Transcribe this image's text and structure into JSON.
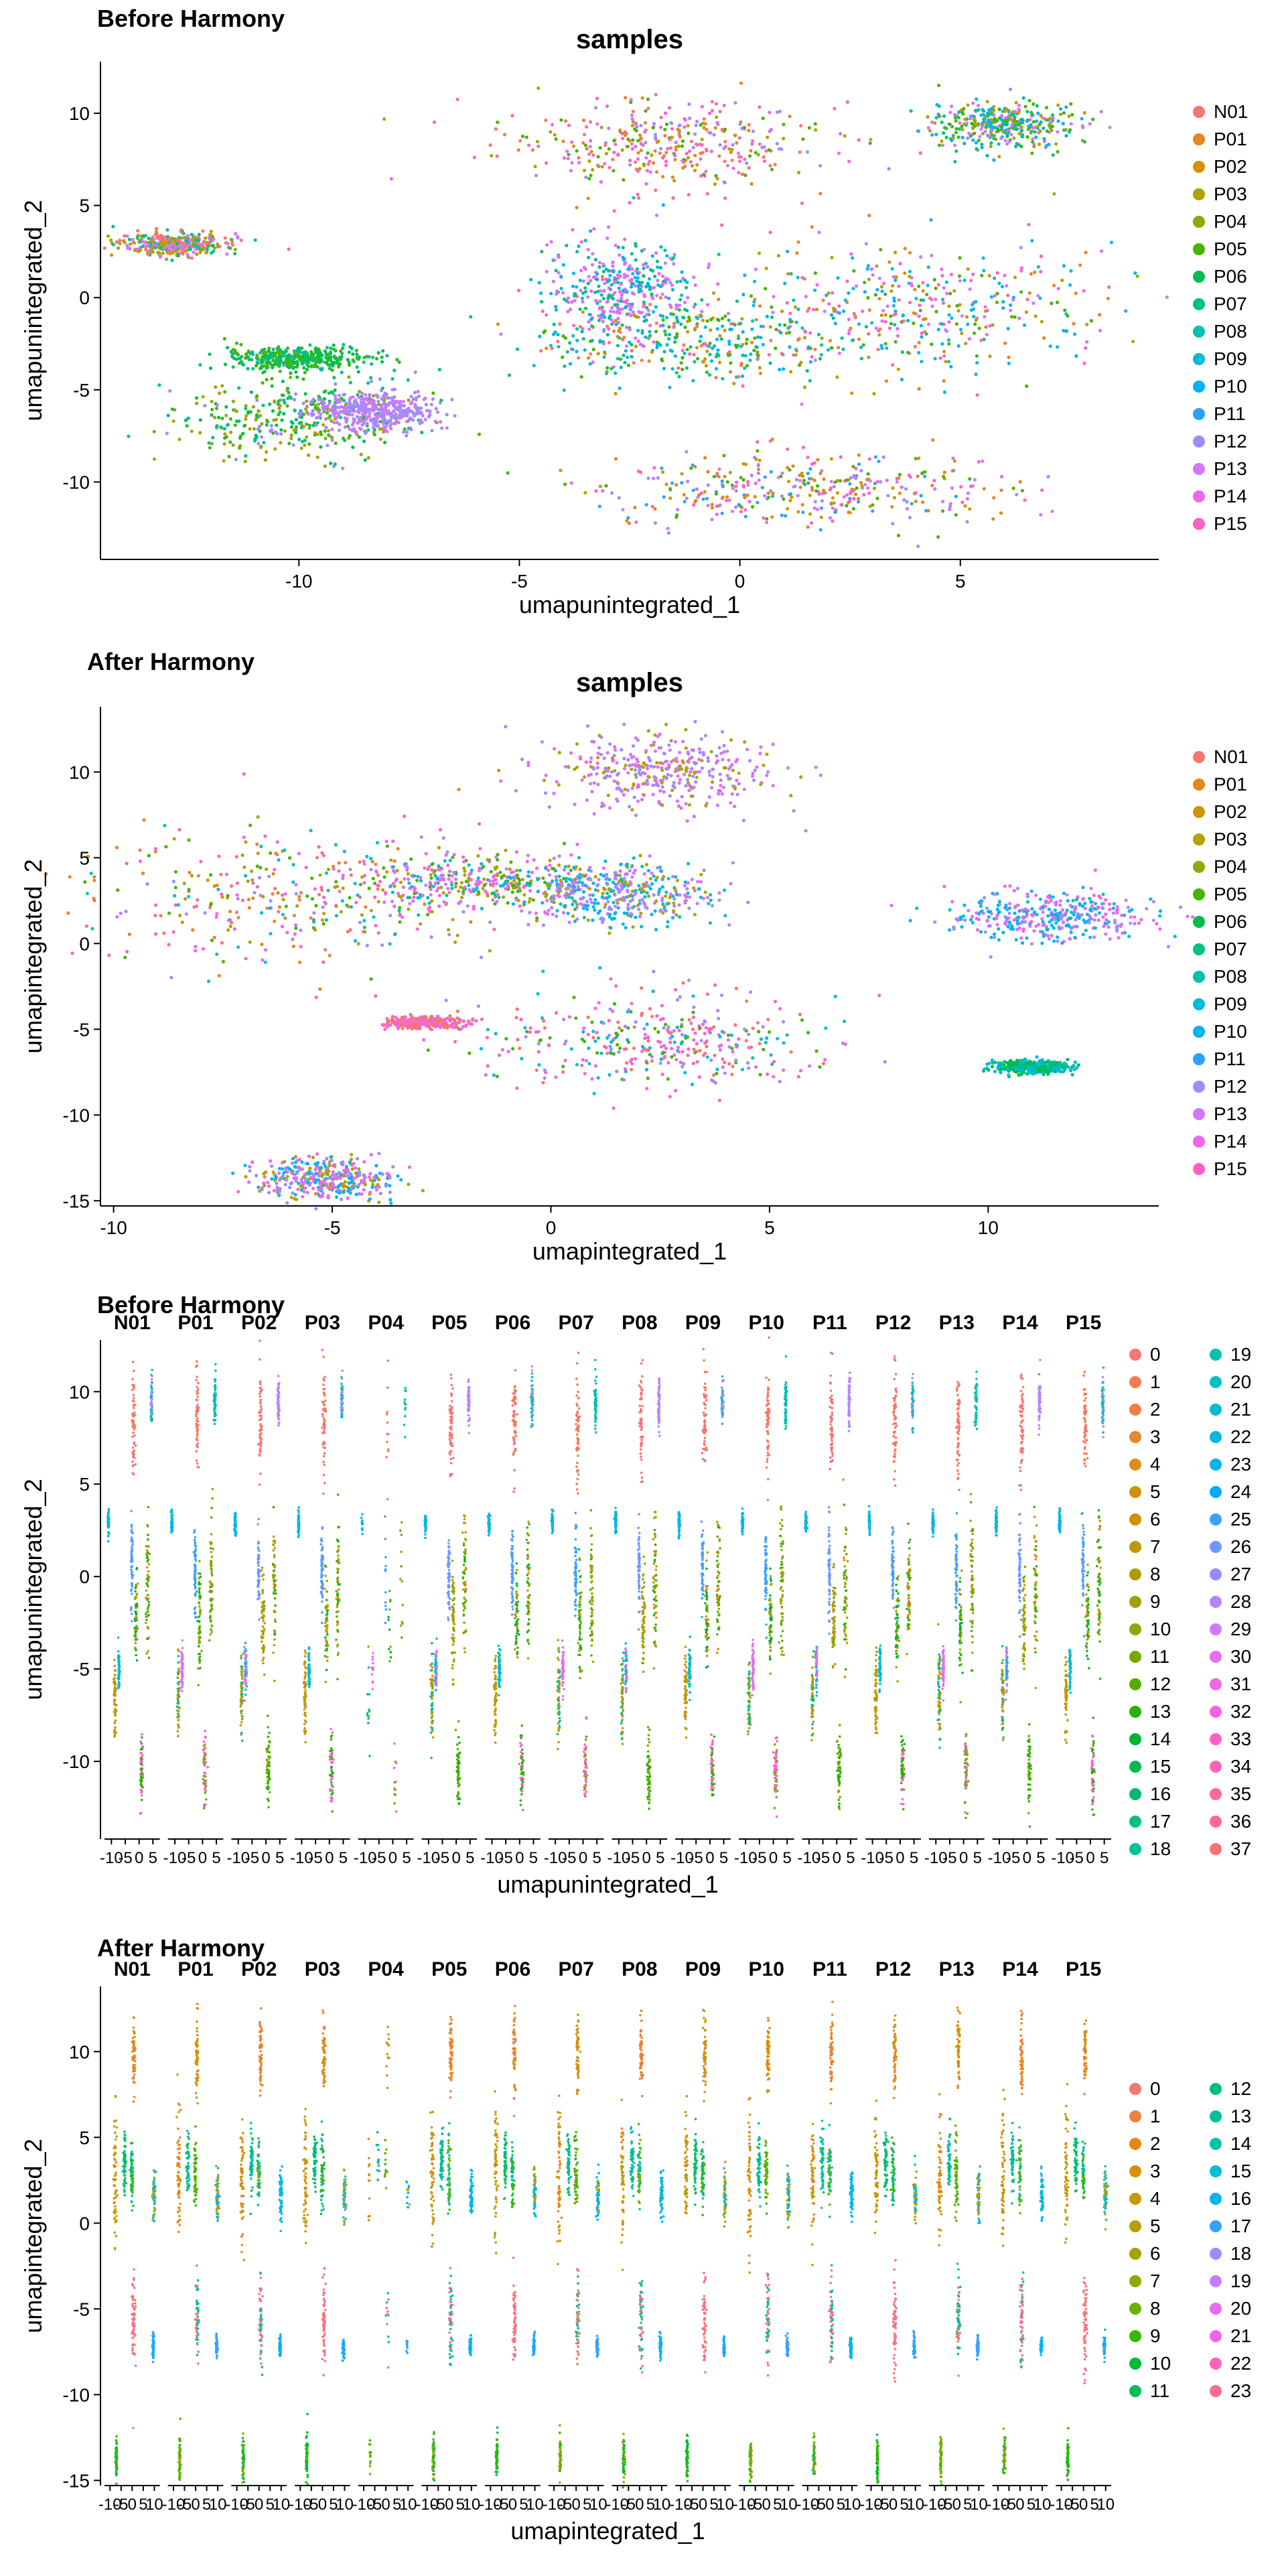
{
  "chart_data": [
    {
      "type": "scatter",
      "panel_title": "Before Harmony",
      "title": "samples",
      "xlabel": "umapunintegrated_1",
      "ylabel": "umapunintegrated_2",
      "xlim": [
        -14.5,
        9.5
      ],
      "ylim": [
        -14.2,
        12.8
      ],
      "xticks": [
        -10,
        -5,
        0,
        5
      ],
      "yticks": [
        -10,
        -5,
        0,
        5,
        10
      ],
      "grid": false,
      "legend_position": "right",
      "legend": [
        "N01",
        "P01",
        "P02",
        "P03",
        "P04",
        "P05",
        "P06",
        "P07",
        "P08",
        "P09",
        "P10",
        "P11",
        "P12",
        "P13",
        "P14",
        "P15"
      ],
      "legend_colors": [
        "#F8766D",
        "#E7851E",
        "#D09400",
        "#B2A100",
        "#89AC00",
        "#45B500",
        "#00BC51",
        "#00C087",
        "#00C0B2",
        "#00BCD6",
        "#00B3F2",
        "#29A3FF",
        "#9C8DFF",
        "#D277FF",
        "#F166E8",
        "#FF61C7"
      ],
      "clusters": [
        {
          "x": -1.8,
          "y": 8.3,
          "sx": 1.8,
          "sy": 1.2,
          "colors": [
            14,
            15,
            0,
            3,
            5,
            12,
            1
          ]
        },
        {
          "x": 5.9,
          "y": 9.4,
          "sx": 0.9,
          "sy": 0.6,
          "colors": [
            10,
            5,
            7,
            13,
            3
          ]
        },
        {
          "x": 4.2,
          "y": -0.5,
          "sx": 2.2,
          "sy": 1.8,
          "colors": [
            10,
            15,
            14,
            9,
            13,
            3,
            5,
            1
          ]
        },
        {
          "x": -0.8,
          "y": -2.4,
          "sx": 2.0,
          "sy": 1.3,
          "colors": [
            9,
            10,
            2,
            5,
            7,
            0
          ]
        },
        {
          "x": -2.7,
          "y": 0.4,
          "sx": 0.8,
          "sy": 1.4,
          "colors": [
            13,
            14,
            10,
            7
          ]
        },
        {
          "x": 1.5,
          "y": -10.4,
          "sx": 2.3,
          "sy": 1.0,
          "colors": [
            13,
            12,
            1,
            11,
            5,
            15,
            2
          ]
        },
        {
          "x": -12.8,
          "y": 2.9,
          "sx": 0.6,
          "sy": 0.3,
          "colors": [
            7,
            13,
            3,
            0
          ]
        },
        {
          "x": -10.0,
          "y": -6.5,
          "sx": 1.4,
          "sy": 1.1,
          "colors": [
            6,
            3,
            4,
            12,
            7,
            5
          ]
        },
        {
          "x": -8.3,
          "y": -6.2,
          "sx": 0.7,
          "sy": 0.5,
          "colors": [
            12,
            13
          ]
        },
        {
          "x": -10.1,
          "y": -3.3,
          "sx": 0.8,
          "sy": 0.3,
          "colors": [
            6,
            5,
            7
          ]
        }
      ]
    },
    {
      "type": "scatter",
      "panel_title": "After Harmony",
      "title": "samples",
      "xlabel": "umapintegrated_1",
      "ylabel": "umapintegrated_2",
      "xlim": [
        -10.3,
        13.9
      ],
      "ylim": [
        -15.3,
        13.8
      ],
      "xticks": [
        -10,
        -5,
        0,
        5,
        10
      ],
      "yticks": [
        -15,
        -10,
        -5,
        0,
        5,
        10
      ],
      "grid": false,
      "legend_position": "right",
      "legend": [
        "N01",
        "P01",
        "P02",
        "P03",
        "P04",
        "P05",
        "P06",
        "P07",
        "P08",
        "P09",
        "P10",
        "P11",
        "P12",
        "P13",
        "P14",
        "P15"
      ],
      "legend_colors": [
        "#F8766D",
        "#E7851E",
        "#D09400",
        "#B2A100",
        "#89AC00",
        "#45B500",
        "#00BC51",
        "#00C087",
        "#00C0B2",
        "#00BCD6",
        "#00B3F2",
        "#29A3FF",
        "#9C8DFF",
        "#D277FF",
        "#F166E8",
        "#FF61C7"
      ],
      "clusters": [
        {
          "x": -5.6,
          "y": 2.7,
          "sx": 2.5,
          "sy": 1.9,
          "colors": [
            14,
            15,
            0,
            12,
            3,
            5,
            1,
            9
          ]
        },
        {
          "x": -1.5,
          "y": 3.6,
          "sx": 1.6,
          "sy": 0.8,
          "colors": [
            14,
            13,
            9,
            5,
            3
          ]
        },
        {
          "x": 2.5,
          "y": 9.9,
          "sx": 1.3,
          "sy": 1.1,
          "colors": [
            12,
            13,
            14,
            3
          ]
        },
        {
          "x": 1.7,
          "y": 2.9,
          "sx": 1.0,
          "sy": 0.9,
          "colors": [
            13,
            9,
            10,
            12,
            3
          ]
        },
        {
          "x": 2.5,
          "y": -5.7,
          "sx": 2.0,
          "sy": 1.3,
          "colors": [
            15,
            14,
            0,
            9,
            12,
            5
          ]
        },
        {
          "x": 11.4,
          "y": 1.6,
          "sx": 1.2,
          "sy": 0.7,
          "colors": [
            10,
            12,
            13,
            14,
            9
          ]
        },
        {
          "x": -5.1,
          "y": -13.7,
          "sx": 0.8,
          "sy": 0.6,
          "colors": [
            14,
            12,
            10,
            3
          ]
        },
        {
          "x": -2.9,
          "y": -4.6,
          "sx": 0.4,
          "sy": 0.15,
          "colors": [
            14,
            0
          ]
        },
        {
          "x": 11.0,
          "y": -7.2,
          "sx": 0.4,
          "sy": 0.2,
          "colors": [
            6,
            9
          ]
        }
      ]
    },
    {
      "type": "scatter",
      "panel_title": "Before Harmony",
      "facets": [
        "N01",
        "P01",
        "P02",
        "P03",
        "P04",
        "P05",
        "P06",
        "P07",
        "P08",
        "P09",
        "P10",
        "P11",
        "P12",
        "P13",
        "P14",
        "P15"
      ],
      "xlabel": "umapunintegrated_1",
      "ylabel": "umapunintegrated_2",
      "xtick_labels": [
        "-10",
        "-5",
        "0",
        "5"
      ],
      "ylim": [
        -14.2,
        12.8
      ],
      "yticks": [
        -10,
        -5,
        0,
        5,
        10
      ],
      "grid": false,
      "legend_position": "right",
      "legend": [
        "0",
        "1",
        "2",
        "3",
        "4",
        "5",
        "6",
        "7",
        "8",
        "9",
        "10",
        "11",
        "12",
        "13",
        "14",
        "15",
        "16",
        "17",
        "18",
        "19",
        "20",
        "21",
        "22",
        "23",
        "24",
        "25",
        "26",
        "27",
        "28",
        "29",
        "30",
        "31",
        "32",
        "33",
        "34",
        "35",
        "36",
        "37"
      ],
      "legend_colors": [
        "#F8766D",
        "#F47C55",
        "#EE8042",
        "#E6862F",
        "#DE8C1C",
        "#D39108",
        "#C79500",
        "#BA9A00",
        "#AB9D00",
        "#9CA300",
        "#8AA800",
        "#74AA00",
        "#58AC00",
        "#2CB100",
        "#00B32E",
        "#00B853",
        "#00BB6E",
        "#00BF85",
        "#00C09C",
        "#00C1AF",
        "#00BFC2",
        "#00BBD2",
        "#00B8E2",
        "#00B3F0",
        "#00ABFC",
        "#3BA2FF",
        "#6E97FF",
        "#958CFF",
        "#B584FF",
        "#CE7AFF",
        "#E270F1",
        "#F067E6",
        "#F962D9",
        "#FE60C7",
        "#FF63B5",
        "#FF67A3",
        "#FD6C8F",
        "#F8717B"
      ],
      "clusters": [
        {
          "x": -1.8,
          "y": 8.3,
          "sx": 0.35,
          "sy": 1.4,
          "colors": [
            0,
            1,
            37
          ]
        },
        {
          "x": 5.9,
          "y": 9.4,
          "sx": 0.2,
          "sy": 0.7,
          "colors": [
            19,
            28
          ]
        },
        {
          "x": 4.2,
          "y": -0.5,
          "sx": 0.35,
          "sy": 1.8,
          "colors": [
            5,
            9,
            12,
            13
          ]
        },
        {
          "x": -0.8,
          "y": -2.4,
          "sx": 0.3,
          "sy": 1.3,
          "colors": [
            10,
            14,
            7
          ]
        },
        {
          "x": -2.7,
          "y": 0.4,
          "sx": 0.2,
          "sy": 1.2,
          "colors": [
            25,
            26
          ]
        },
        {
          "x": 1.5,
          "y": -10.4,
          "sx": 0.35,
          "sy": 1.0,
          "colors": [
            13,
            11,
            33
          ]
        },
        {
          "x": -12.8,
          "y": 2.9,
          "sx": 0.15,
          "sy": 0.3,
          "colors": [
            22
          ]
        },
        {
          "x": -10.0,
          "y": -6.5,
          "sx": 0.25,
          "sy": 1.1,
          "colors": [
            7,
            6,
            17
          ]
        },
        {
          "x": -8.3,
          "y": -5.0,
          "sx": 0.2,
          "sy": 0.6,
          "colors": [
            21,
            30
          ]
        }
      ]
    },
    {
      "type": "scatter",
      "panel_title": "After Harmony",
      "facets": [
        "N01",
        "P01",
        "P02",
        "P03",
        "P04",
        "P05",
        "P06",
        "P07",
        "P08",
        "P09",
        "P10",
        "P11",
        "P12",
        "P13",
        "P14",
        "P15"
      ],
      "xlabel": "umapintegrated_1",
      "ylabel": "umapintegrated_2",
      "xtick_labels": [
        "-10",
        "-5",
        "0",
        "5",
        "10"
      ],
      "ylim": [
        -15.3,
        13.8
      ],
      "yticks": [
        -15,
        -10,
        -5,
        0,
        5,
        10
      ],
      "grid": false,
      "legend_position": "right",
      "legend": [
        "0",
        "1",
        "2",
        "3",
        "4",
        "5",
        "6",
        "7",
        "8",
        "9",
        "10",
        "11",
        "12",
        "13",
        "14",
        "15",
        "16",
        "17",
        "18",
        "19",
        "20",
        "21",
        "22",
        "23"
      ],
      "legend_colors": [
        "#F8766D",
        "#EE8042",
        "#E68613",
        "#D89000",
        "#C99800",
        "#B79F00",
        "#A3A500",
        "#8AAB00",
        "#6BB100",
        "#39B600",
        "#00BA38",
        "#00BD5F",
        "#00BF7D",
        "#00C097",
        "#00C0AF",
        "#00BCD8",
        "#00B4F0",
        "#35A2FF",
        "#9590FF",
        "#C77CFF",
        "#E76BF3",
        "#F365E6",
        "#FF62BC",
        "#FF6C91"
      ],
      "clusters": [
        {
          "x": -5.6,
          "y": 2.7,
          "sx": 0.35,
          "sy": 1.9,
          "colors": [
            2,
            3,
            5
          ]
        },
        {
          "x": -1.5,
          "y": 3.6,
          "sx": 0.3,
          "sy": 0.9,
          "colors": [
            11,
            12,
            14
          ]
        },
        {
          "x": 2.5,
          "y": 9.9,
          "sx": 0.3,
          "sy": 1.1,
          "colors": [
            1,
            2,
            4
          ]
        },
        {
          "x": 1.7,
          "y": 2.9,
          "sx": 0.3,
          "sy": 1.0,
          "colors": [
            8,
            9,
            13
          ]
        },
        {
          "x": 2.5,
          "y": -5.7,
          "sx": 0.35,
          "sy": 1.3,
          "colors": [
            0,
            23,
            13
          ]
        },
        {
          "x": 11.4,
          "y": 1.6,
          "sx": 0.3,
          "sy": 0.7,
          "colors": [
            15,
            16,
            5
          ]
        },
        {
          "x": -5.1,
          "y": -13.7,
          "sx": 0.2,
          "sy": 0.6,
          "colors": [
            7,
            9,
            10
          ]
        },
        {
          "x": 11.0,
          "y": -7.2,
          "sx": 0.2,
          "sy": 0.3,
          "colors": [
            17,
            16
          ]
        }
      ]
    }
  ]
}
